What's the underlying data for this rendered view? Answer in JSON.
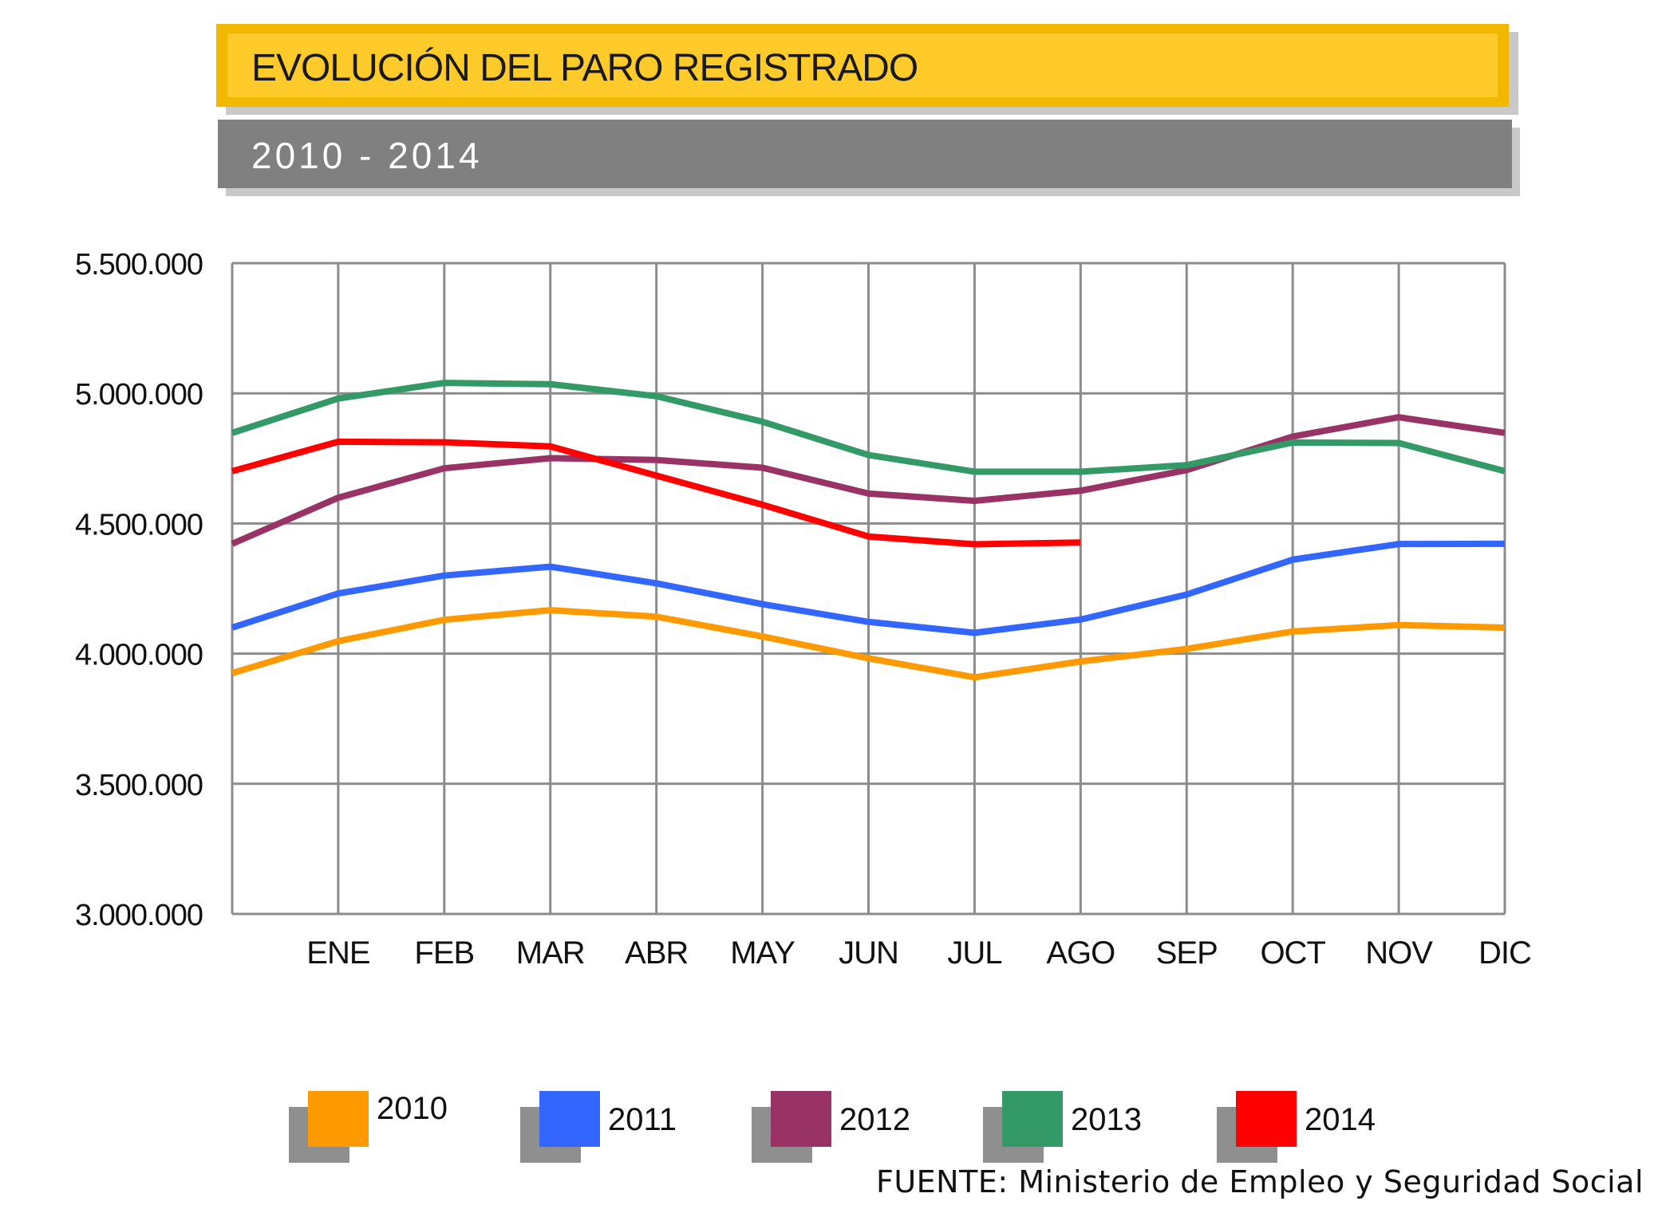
{
  "header": {
    "title": "EVOLUCIÓN DEL PARO REGISTRADO",
    "subtitle": "2010 - 2014"
  },
  "source": "FUENTE: Ministerio de Empleo y Seguridad Social",
  "chart_data": {
    "type": "line",
    "title": "EVOLUCIÓN DEL PARO REGISTRADO",
    "subtitle": "2010 - 2014",
    "xlabel": "",
    "ylabel": "",
    "categories": [
      "ENE",
      "FEB",
      "MAR",
      "ABR",
      "MAY",
      "JUN",
      "JUL",
      "AGO",
      "SEP",
      "OCT",
      "NOV",
      "DIC"
    ],
    "x_label_positions_note": "",
    "ylim": [
      3000000,
      5500000
    ],
    "yticks": [
      3000000,
      3500000,
      4000000,
      4500000,
      5000000,
      5500000
    ],
    "ytick_labels": [
      "3.000.000",
      "3.500.000",
      "4.000.000",
      "4.500.000",
      "5.000.000",
      "5.500.000"
    ],
    "grid": true,
    "legend_position": "bottom",
    "series": [
      {
        "name": "2010",
        "color": "#ff9900",
        "start": 3925000,
        "values": [
          4048000,
          4130000,
          4167000,
          4142000,
          4066000,
          3982000,
          3909000,
          3970000,
          4018000,
          4085000,
          4110000,
          4100000
        ]
      },
      {
        "name": "2011",
        "color": "#3366ff",
        "start": 4100000,
        "values": [
          4231000,
          4300000,
          4334000,
          4270000,
          4190000,
          4122000,
          4080000,
          4131000,
          4227000,
          4361000,
          4421000,
          4422000
        ]
      },
      {
        "name": "2012",
        "color": "#993366",
        "start": 4422000,
        "values": [
          4599000,
          4712000,
          4751000,
          4744000,
          4714000,
          4615000,
          4587000,
          4626000,
          4705000,
          4834000,
          4908000,
          4848000
        ]
      },
      {
        "name": "2013",
        "color": "#339966",
        "start": 4848000,
        "values": [
          4980000,
          5040000,
          5035000,
          4989000,
          4891000,
          4763000,
          4699000,
          4699000,
          4724000,
          4811000,
          4809000,
          4701000
        ]
      },
      {
        "name": "2014",
        "color": "#ff0000",
        "start": 4701000,
        "values": [
          4814000,
          4812000,
          4796000,
          4684000,
          4572000,
          4450000,
          4420000,
          4427000,
          null,
          null,
          null,
          null
        ]
      }
    ]
  }
}
